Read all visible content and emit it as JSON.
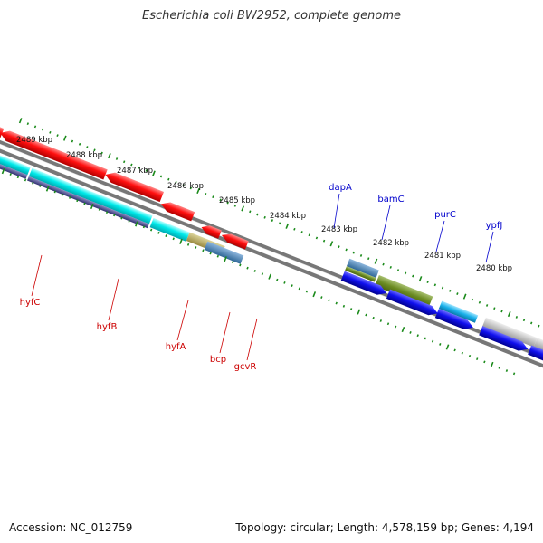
{
  "title": "Escherichia coli BW2952, complete genome",
  "accession": "Accession: NC_012759",
  "topology": "Topology: circular; Length: 4,578,159 bp; Genes: 4,194",
  "colors": {
    "backbone": "#777777",
    "tick": "#1a8a1a",
    "upper_label": "#0000cc",
    "lower_label": "#cc0000"
  },
  "kbp_labels": [
    "2489 kbp",
    "2488 kbp",
    "2487 kbp",
    "2486 kbp",
    "2485 kbp",
    "2484 kbp",
    "2483 kbp",
    "2482 kbp",
    "2481 kbp",
    "2480 kbp"
  ],
  "upper_genes": [
    "dapA",
    "bamC",
    "purC",
    "ypfJ"
  ],
  "lower_genes": [
    "hyfC",
    "hyfB",
    "hyfA",
    "bcp",
    "gcvR"
  ]
}
